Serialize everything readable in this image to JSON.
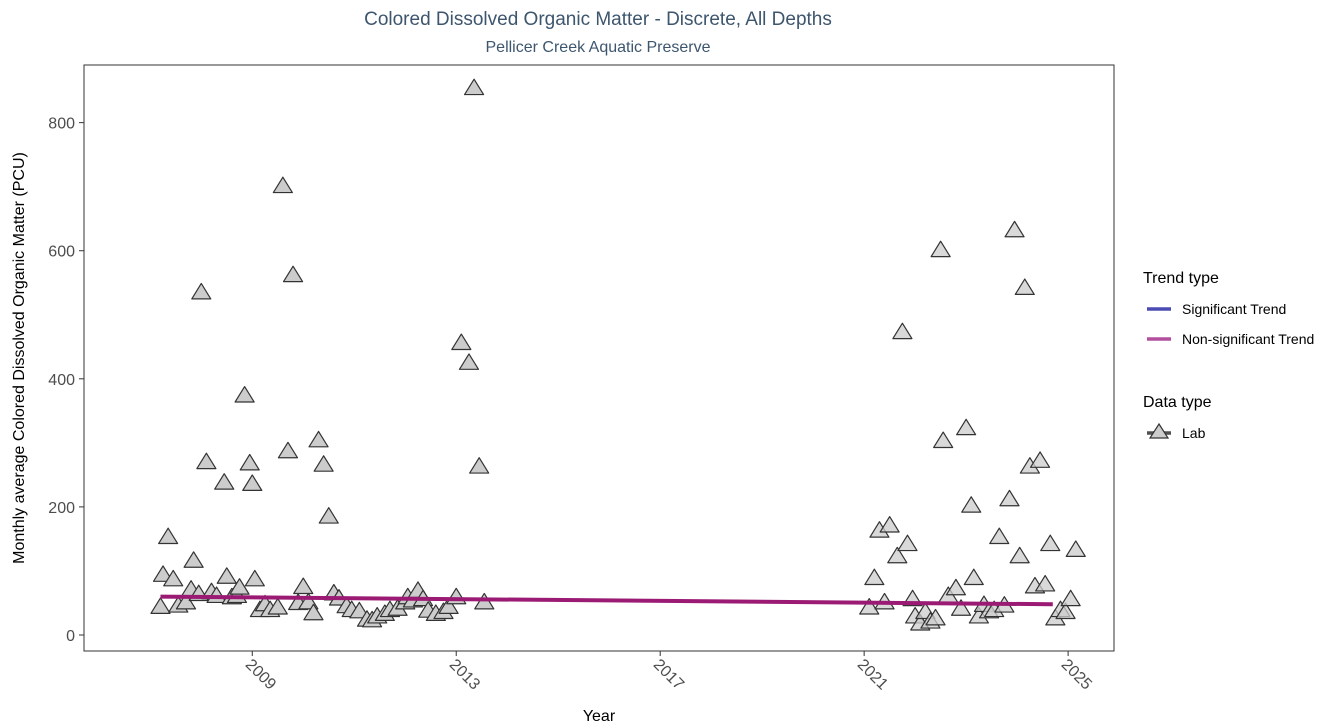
{
  "chart_data": {
    "type": "scatter",
    "title": "Colored Dissolved Organic Matter - Discrete, All Depths",
    "subtitle": "Pellicer Creek Aquatic Preserve",
    "xlabel": "Year",
    "ylabel": "Monthly average Colored Dissolved Organic Matter (PCU)",
    "xlim": [
      2005.7,
      2025.9
    ],
    "ylim": [
      -25,
      890
    ],
    "x_ticks": [
      "2009",
      "2013",
      "2017",
      "2021",
      "2025"
    ],
    "x_tick_values": [
      2009,
      2013,
      2017,
      2021,
      2025
    ],
    "y_ticks": [
      "0",
      "200",
      "400",
      "600",
      "800"
    ],
    "y_tick_values": [
      0,
      200,
      400,
      600,
      800
    ],
    "grid": false,
    "legend_position": "right",
    "colors": {
      "significant": "#4b4bb4",
      "nonsignificant": "#b2509e",
      "trend_line": "#9b1b74",
      "marker_fill": "#cccccc",
      "marker_stroke": "#333333"
    },
    "legend": {
      "trend_title": "Trend type",
      "trend_items": [
        "Significant Trend",
        "Non-significant Trend"
      ],
      "data_title": "Data type",
      "data_items": [
        "Lab"
      ]
    },
    "trend_line": {
      "name": "Non-significant Trend",
      "x": [
        2007.2,
        2024.7
      ],
      "y": [
        60,
        48
      ]
    },
    "series": [
      {
        "name": "Lab",
        "marker": "triangle",
        "points": [
          [
            2007.2,
            43
          ],
          [
            2007.25,
            93
          ],
          [
            2007.35,
            152
          ],
          [
            2007.45,
            86
          ],
          [
            2007.55,
            45
          ],
          [
            2007.7,
            50
          ],
          [
            2007.8,
            70
          ],
          [
            2007.85,
            115
          ],
          [
            2007.95,
            63
          ],
          [
            2008.0,
            534
          ],
          [
            2008.1,
            269
          ],
          [
            2008.2,
            66
          ],
          [
            2008.3,
            60
          ],
          [
            2008.45,
            237
          ],
          [
            2008.5,
            90
          ],
          [
            2008.6,
            58
          ],
          [
            2008.7,
            60
          ],
          [
            2008.75,
            73
          ],
          [
            2008.85,
            373
          ],
          [
            2008.95,
            267
          ],
          [
            2009.0,
            235
          ],
          [
            2009.05,
            86
          ],
          [
            2009.15,
            38
          ],
          [
            2009.25,
            47
          ],
          [
            2009.35,
            38
          ],
          [
            2009.5,
            42
          ],
          [
            2009.6,
            700
          ],
          [
            2009.7,
            286
          ],
          [
            2009.8,
            561
          ],
          [
            2009.9,
            49
          ],
          [
            2010.0,
            74
          ],
          [
            2010.1,
            50
          ],
          [
            2010.2,
            33
          ],
          [
            2010.3,
            303
          ],
          [
            2010.4,
            265
          ],
          [
            2010.5,
            184
          ],
          [
            2010.6,
            64
          ],
          [
            2010.7,
            56
          ],
          [
            2010.85,
            44
          ],
          [
            2010.95,
            38
          ],
          [
            2011.1,
            36
          ],
          [
            2011.25,
            23
          ],
          [
            2011.35,
            22
          ],
          [
            2011.45,
            28
          ],
          [
            2011.6,
            32
          ],
          [
            2011.7,
            38
          ],
          [
            2011.85,
            40
          ],
          [
            2012.0,
            50
          ],
          [
            2012.05,
            58
          ],
          [
            2012.15,
            53
          ],
          [
            2012.25,
            68
          ],
          [
            2012.35,
            55
          ],
          [
            2012.45,
            37
          ],
          [
            2012.6,
            32
          ],
          [
            2012.75,
            35
          ],
          [
            2012.85,
            43
          ],
          [
            2013.0,
            58
          ],
          [
            2013.1,
            455
          ],
          [
            2013.25,
            424
          ],
          [
            2013.35,
            853
          ],
          [
            2013.45,
            262
          ],
          [
            2013.55,
            50
          ],
          [
            2021.1,
            42
          ],
          [
            2021.2,
            88
          ],
          [
            2021.3,
            162
          ],
          [
            2021.4,
            50
          ],
          [
            2021.5,
            170
          ],
          [
            2021.65,
            122
          ],
          [
            2021.75,
            472
          ],
          [
            2021.85,
            141
          ],
          [
            2021.95,
            55
          ],
          [
            2022.0,
            28
          ],
          [
            2022.1,
            17
          ],
          [
            2022.2,
            35
          ],
          [
            2022.3,
            20
          ],
          [
            2022.4,
            25
          ],
          [
            2022.5,
            600
          ],
          [
            2022.55,
            302
          ],
          [
            2022.65,
            60
          ],
          [
            2022.8,
            72
          ],
          [
            2022.9,
            40
          ],
          [
            2023.0,
            322
          ],
          [
            2023.1,
            201
          ],
          [
            2023.15,
            88
          ],
          [
            2023.25,
            28
          ],
          [
            2023.35,
            46
          ],
          [
            2023.45,
            36
          ],
          [
            2023.55,
            38
          ],
          [
            2023.65,
            152
          ],
          [
            2023.75,
            45
          ],
          [
            2023.85,
            211
          ],
          [
            2023.95,
            631
          ],
          [
            2024.05,
            122
          ],
          [
            2024.15,
            541
          ],
          [
            2024.25,
            262
          ],
          [
            2024.35,
            75
          ],
          [
            2024.45,
            271
          ],
          [
            2024.55,
            78
          ],
          [
            2024.65,
            141
          ],
          [
            2024.75,
            25
          ],
          [
            2024.85,
            38
          ],
          [
            2024.95,
            35
          ],
          [
            2025.05,
            55
          ],
          [
            2025.15,
            132
          ]
        ]
      }
    ]
  }
}
